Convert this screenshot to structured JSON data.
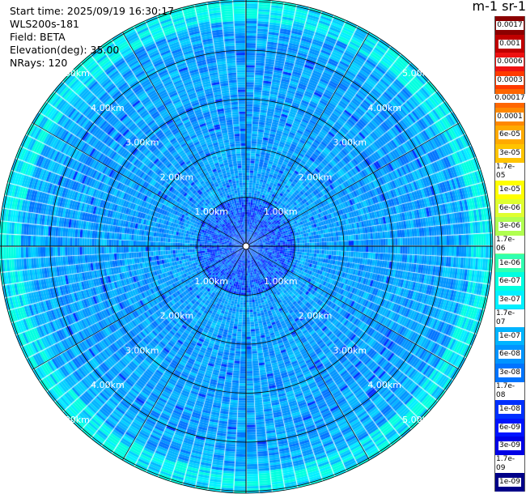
{
  "info": {
    "start_time": "Start time: 2025/09/19 16:30:17",
    "instrument": "WLS200s-181",
    "field": "Field: BETA",
    "elevation": "Elevation(deg): 35.00",
    "nrays": "NRays: 120"
  },
  "units_title": "m-1 sr-1",
  "chart_data": {
    "type": "heatmap",
    "projection": "polar PPI",
    "n_rays": 120,
    "range_ring_labels_km": [
      "1.00km",
      "2.00km",
      "3.00km",
      "4.00km",
      "5.00km"
    ],
    "range_rings_km": [
      1,
      2,
      3,
      4,
      5
    ],
    "max_range_km": 5.0,
    "grid": true,
    "colorbar": {
      "placement": "right",
      "levels": [
        {
          "label": "0.0017",
          "color": "#8b0000"
        },
        {
          "label": "0.001",
          "color": "#c00000"
        },
        {
          "label": "0.0006",
          "color": "#ee1111"
        },
        {
          "label": "0.0003",
          "color": "#ff3a00"
        },
        {
          "label": "0.00017",
          "color": "#ff6600"
        },
        {
          "label": "0.0001",
          "color": "#ff8800"
        },
        {
          "label": "6e-05",
          "color": "#ffaa00"
        },
        {
          "label": "3e-05",
          "color": "#ffc400"
        },
        {
          "label": "1.7e-05",
          "color": "#ffe000"
        },
        {
          "label": "1e-05",
          "color": "#ffff00"
        },
        {
          "label": "6e-06",
          "color": "#dfff30"
        },
        {
          "label": "3e-06",
          "color": "#b0ff50"
        },
        {
          "label": "1.7e-06",
          "color": "#80ff80"
        },
        {
          "label": "1e-06",
          "color": "#30ffb0"
        },
        {
          "label": "6e-07",
          "color": "#00ffe0"
        },
        {
          "label": "3e-07",
          "color": "#00f0ff"
        },
        {
          "label": "1.7e-07",
          "color": "#00d0ff"
        },
        {
          "label": "1e-07",
          "color": "#00b4ff"
        },
        {
          "label": "6e-08",
          "color": "#0094ff"
        },
        {
          "label": "3e-08",
          "color": "#0074ff"
        },
        {
          "label": "1.7e-08",
          "color": "#0050ff"
        },
        {
          "label": "1e-08",
          "color": "#0030ff"
        },
        {
          "label": "6e-09",
          "color": "#0014ff"
        },
        {
          "label": "3e-09",
          "color": "#0000e6"
        },
        {
          "label": "1.7e-09",
          "color": "#0000b8"
        },
        {
          "label": "1e-09",
          "color": "#000088"
        }
      ]
    },
    "dominant_levels": [
      "6e-08",
      "3e-08",
      "1e-07"
    ],
    "outer_band_level": "6e-07"
  }
}
